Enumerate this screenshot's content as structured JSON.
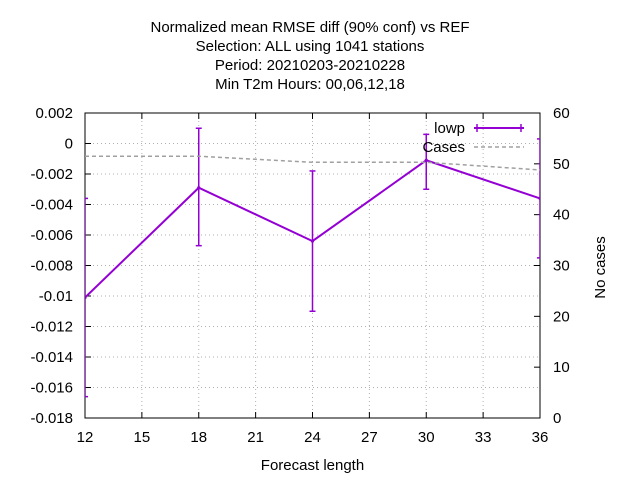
{
  "chart_data": {
    "type": "line",
    "title_lines": [
      "Normalized mean RMSE diff (90% conf) vs REF",
      "Selection: ALL using  1041 stations",
      "Period: 20210203-20210228",
      "Min T2m   Hours:  00,06,12,18"
    ],
    "xlabel": "Forecast length",
    "ylabel": "",
    "y2label": "No cases",
    "xlim": [
      12,
      36
    ],
    "ylim": [
      -0.018,
      0.002
    ],
    "y2lim": [
      0,
      60
    ],
    "x_ticks": [
      12,
      15,
      18,
      21,
      24,
      27,
      30,
      33,
      36
    ],
    "y_ticks": [
      0.002,
      0,
      -0.002,
      -0.004,
      -0.006,
      -0.008,
      -0.01,
      -0.012,
      -0.014,
      -0.016,
      -0.018
    ],
    "y_tick_labels": [
      "0.002",
      "0",
      "-0.002",
      "-0.004",
      "-0.006",
      "-0.008",
      "-0.01",
      "-0.012",
      "-0.014",
      "-0.016",
      "-0.018"
    ],
    "y2_ticks": [
      0,
      10,
      20,
      30,
      40,
      50,
      60
    ],
    "grid": true,
    "legend_position": "top-right",
    "series": [
      {
        "name": "lowp",
        "axis": "y",
        "color": "#9400d3",
        "style": "errorbars",
        "x": [
          12,
          18,
          24,
          30,
          36
        ],
        "y": [
          -0.0101,
          -0.0029,
          -0.0064,
          -0.0011,
          -0.0036
        ],
        "err_low": [
          -0.0166,
          -0.0067,
          -0.011,
          -0.003,
          -0.0075
        ],
        "err_high": [
          -0.0036,
          0.001,
          -0.0018,
          0.0006,
          0.0003
        ]
      },
      {
        "name": "Cases",
        "axis": "y2",
        "color": "#a0a0a0",
        "style": "dashed",
        "x": [
          12,
          18,
          24,
          30,
          36
        ],
        "y": [
          51.5,
          51.5,
          50.3,
          50.3,
          48.8
        ]
      }
    ]
  }
}
